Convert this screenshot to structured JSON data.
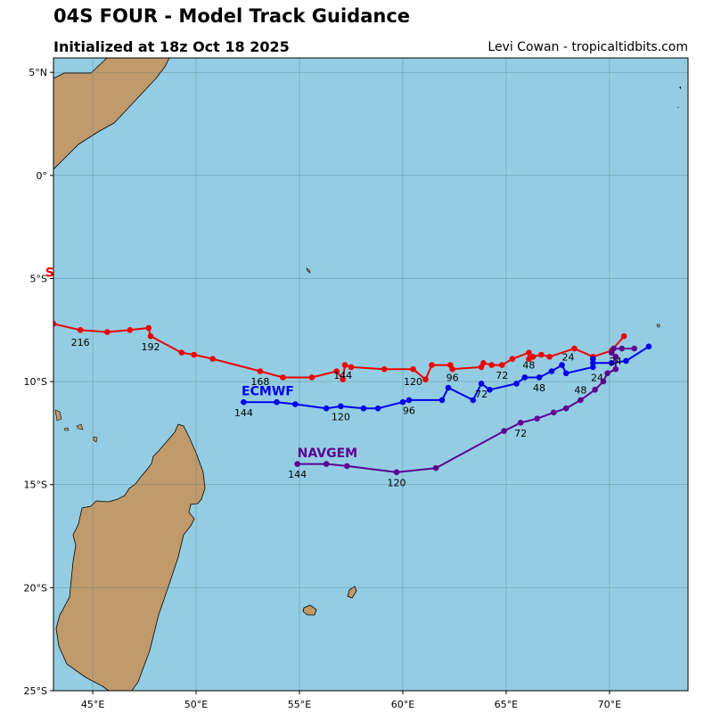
{
  "header": {
    "title": "04S FOUR - Model Track Guidance",
    "subtitle": "Initialized at 18z Oct 18 2025",
    "credit": "Levi Cowan - tropicaltidbits.com"
  },
  "map": {
    "lon_range": [
      43.1,
      73.8
    ],
    "lat_range": [
      -25.0,
      5.7
    ],
    "colors": {
      "ocean": "#94cde3",
      "land": "#c19a6b",
      "grid": "#5f7f8c"
    },
    "lon_ticks": [
      {
        "value": 45,
        "label": "45°E"
      },
      {
        "value": 50,
        "label": "50°E"
      },
      {
        "value": 55,
        "label": "55°E"
      },
      {
        "value": 60,
        "label": "60°E"
      },
      {
        "value": 65,
        "label": "65°E"
      },
      {
        "value": 70,
        "label": "70°E"
      }
    ],
    "lat_ticks": [
      {
        "value": 5,
        "label": "5°N"
      },
      {
        "value": 0,
        "label": "0°"
      },
      {
        "value": -5,
        "label": "5°S"
      },
      {
        "value": -10,
        "label": "10°S"
      },
      {
        "value": -15,
        "label": "15°S"
      },
      {
        "value": -20,
        "label": "20°S"
      },
      {
        "value": -25,
        "label": "25°S"
      }
    ]
  },
  "chart_data": {
    "type": "line",
    "title": "04S FOUR - Model Track Guidance",
    "xlabel": "",
    "ylabel": "",
    "xlim": [
      43.1,
      73.8
    ],
    "ylim": [
      -25.0,
      5.7
    ],
    "series": [
      {
        "name": "GFS",
        "color": "#ee0000",
        "points": [
          [
            70.7,
            -7.8
          ],
          [
            70.1,
            -8.5
          ],
          [
            69.2,
            -8.8
          ],
          [
            68.3,
            -8.4
          ],
          [
            67.1,
            -8.8
          ],
          [
            66.7,
            -8.7
          ],
          [
            66.3,
            -8.8
          ],
          [
            66.1,
            -8.9
          ],
          [
            66.1,
            -8.6
          ],
          [
            65.3,
            -8.9
          ],
          [
            64.8,
            -9.2
          ],
          [
            64.3,
            -9.2
          ],
          [
            63.9,
            -9.1
          ],
          [
            63.8,
            -9.3
          ],
          [
            62.4,
            -9.4
          ],
          [
            62.3,
            -9.2
          ],
          [
            61.4,
            -9.2
          ],
          [
            61.1,
            -9.9
          ],
          [
            60.5,
            -9.4
          ],
          [
            59.1,
            -9.4
          ],
          [
            57.5,
            -9.3
          ],
          [
            57.2,
            -9.2
          ],
          [
            57.1,
            -9.9
          ],
          [
            56.8,
            -9.5
          ],
          [
            55.6,
            -9.8
          ],
          [
            54.2,
            -9.8
          ],
          [
            53.1,
            -9.5
          ],
          [
            50.8,
            -8.9
          ],
          [
            49.9,
            -8.7
          ],
          [
            49.3,
            -8.6
          ],
          [
            47.8,
            -7.8
          ],
          [
            47.7,
            -7.4
          ],
          [
            46.8,
            -7.5
          ],
          [
            45.7,
            -7.6
          ],
          [
            44.4,
            -7.5
          ],
          [
            43.1,
            -7.2
          ]
        ],
        "labels": [
          {
            "text": "24",
            "at": [
              68.0,
              -8.8
            ]
          },
          {
            "text": "48",
            "at": [
              66.1,
              -9.2
            ]
          },
          {
            "text": "72",
            "at": [
              64.8,
              -9.7
            ]
          },
          {
            "text": "96",
            "at": [
              62.4,
              -9.8
            ]
          },
          {
            "text": "120",
            "at": [
              60.5,
              -10.0
            ]
          },
          {
            "text": "144",
            "at": [
              57.1,
              -9.7
            ]
          },
          {
            "text": "168",
            "at": [
              53.1,
              -10.0
            ]
          },
          {
            "text": "192",
            "at": [
              47.8,
              -8.3
            ]
          },
          {
            "text": "216",
            "at": [
              44.4,
              -8.1
            ]
          }
        ]
      },
      {
        "name": "ECMWF",
        "color": "#0000ee",
        "points": [
          [
            71.9,
            -8.3
          ],
          [
            70.8,
            -9.0
          ],
          [
            70.1,
            -9.1
          ],
          [
            69.2,
            -9.1
          ],
          [
            69.2,
            -8.9
          ],
          [
            69.2,
            -9.3
          ],
          [
            67.9,
            -9.6
          ],
          [
            67.7,
            -9.2
          ],
          [
            67.2,
            -9.5
          ],
          [
            66.6,
            -9.8
          ],
          [
            65.9,
            -9.8
          ],
          [
            65.5,
            -10.1
          ],
          [
            64.2,
            -10.4
          ],
          [
            63.8,
            -10.1
          ],
          [
            63.4,
            -10.9
          ],
          [
            62.2,
            -10.3
          ],
          [
            61.9,
            -10.9
          ],
          [
            60.3,
            -10.9
          ],
          [
            60.0,
            -11.0
          ],
          [
            58.8,
            -11.3
          ],
          [
            58.1,
            -11.3
          ],
          [
            57.0,
            -11.2
          ],
          [
            56.3,
            -11.3
          ],
          [
            54.8,
            -11.1
          ],
          [
            53.9,
            -11.0
          ],
          [
            52.3,
            -11.0
          ]
        ],
        "labels": [
          {
            "text": "24",
            "at": [
              69.4,
              -9.8
            ]
          },
          {
            "text": "48",
            "at": [
              66.6,
              -10.3
            ]
          },
          {
            "text": "72",
            "at": [
              63.8,
              -10.6
            ]
          },
          {
            "text": "96",
            "at": [
              60.3,
              -11.4
            ]
          },
          {
            "text": "120",
            "at": [
              57.0,
              -11.7
            ]
          },
          {
            "text": "144",
            "at": [
              52.3,
              -11.5
            ]
          }
        ]
      },
      {
        "name": "NAVGEM",
        "color": "#5c0091",
        "points": [
          [
            71.2,
            -8.4
          ],
          [
            70.6,
            -8.4
          ],
          [
            70.2,
            -8.4
          ],
          [
            70.1,
            -8.6
          ],
          [
            70.3,
            -8.8
          ],
          [
            70.3,
            -9.4
          ],
          [
            69.9,
            -9.6
          ],
          [
            69.7,
            -10.0
          ],
          [
            69.3,
            -10.4
          ],
          [
            68.6,
            -10.9
          ],
          [
            67.9,
            -11.3
          ],
          [
            67.3,
            -11.5
          ],
          [
            66.5,
            -11.8
          ],
          [
            65.7,
            -12.0
          ],
          [
            64.9,
            -12.4
          ],
          [
            61.6,
            -14.2
          ],
          [
            59.7,
            -14.4
          ],
          [
            57.3,
            -14.1
          ],
          [
            56.3,
            -14.0
          ],
          [
            54.9,
            -14.0
          ]
        ],
        "labels": [
          {
            "text": "24",
            "at": [
              70.3,
              -9.0
            ]
          },
          {
            "text": "48",
            "at": [
              68.6,
              -10.4
            ]
          },
          {
            "text": "72",
            "at": [
              65.7,
              -12.5
            ]
          },
          {
            "text": "120",
            "at": [
              59.7,
              -14.9
            ]
          },
          {
            "text": "144",
            "at": [
              54.9,
              -14.5
            ]
          }
        ]
      }
    ],
    "series_labels": [
      {
        "text": "ECMWF",
        "series": "ECMWF",
        "at": [
          52.2,
          -10.45
        ]
      },
      {
        "text": "NAVGEM",
        "series": "NAVGEM",
        "at": [
          54.9,
          -13.45
        ]
      },
      {
        "text": "S",
        "series": "GFS",
        "at": [
          42.7,
          -4.7
        ]
      }
    ]
  }
}
